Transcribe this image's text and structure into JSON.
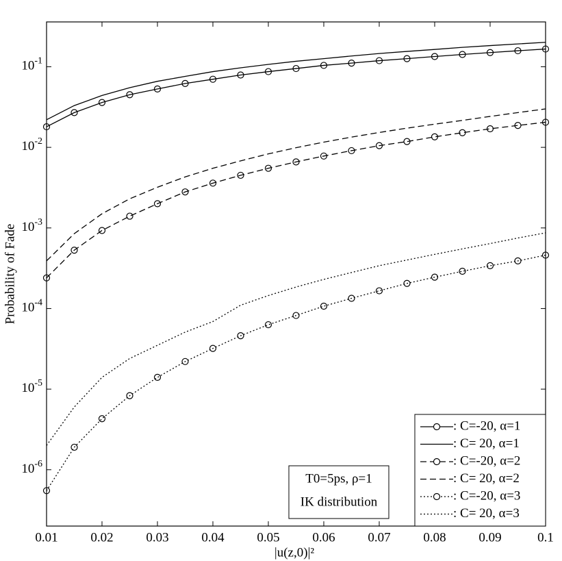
{
  "chart_data": {
    "type": "line",
    "xlabel": "|u(z,0)|²",
    "ylabel": "Probability of Fade",
    "log_y": true,
    "x": [
      0.01,
      0.015,
      0.02,
      0.025,
      0.03,
      0.035,
      0.04,
      0.045,
      0.05,
      0.055,
      0.06,
      0.065,
      0.07,
      0.075,
      0.08,
      0.085,
      0.09,
      0.095,
      0.1
    ],
    "xlim": [
      0.01,
      0.1
    ],
    "ylim": [
      2e-07,
      0.36
    ],
    "xticks": [
      0.01,
      0.02,
      0.03,
      0.04,
      0.05,
      0.06,
      0.07,
      0.08,
      0.09,
      0.1
    ],
    "yticks": [
      {
        "value": 1e-06,
        "label": "10^-6"
      },
      {
        "value": 1e-05,
        "label": "10^-5"
      },
      {
        "value": 0.0001,
        "label": "10^-4"
      },
      {
        "value": 0.001,
        "label": "10^-3"
      },
      {
        "value": 0.01,
        "label": "10^-2"
      },
      {
        "value": 0.1,
        "label": "10^-1"
      }
    ],
    "legend": "lower right",
    "annotations": [
      "T0=5ps, ρ=1",
      "IK distribution"
    ],
    "series": [
      {
        "name": ": C=-20, α=1",
        "color": "#000000",
        "style": "solid",
        "marker": "circle",
        "values": [
          0.018,
          0.027,
          0.036,
          0.045,
          0.053,
          0.062,
          0.07,
          0.079,
          0.087,
          0.095,
          0.104,
          0.111,
          0.119,
          0.126,
          0.134,
          0.142,
          0.15,
          0.158,
          0.166
        ]
      },
      {
        "name": ": C= 20, α=1",
        "color": "#000000",
        "style": "solid",
        "values": [
          0.022,
          0.033,
          0.044,
          0.055,
          0.066,
          0.076,
          0.087,
          0.097,
          0.107,
          0.117,
          0.126,
          0.136,
          0.146,
          0.155,
          0.164,
          0.174,
          0.183,
          0.192,
          0.201
        ]
      },
      {
        "name": ": C=-20, α=2",
        "color": "#000000",
        "style": "dashed",
        "marker": "circle",
        "values": [
          0.00024,
          0.00053,
          0.00093,
          0.0014,
          0.002,
          0.0028,
          0.0036,
          0.0045,
          0.0055,
          0.0066,
          0.0078,
          0.0091,
          0.0105,
          0.0118,
          0.0135,
          0.0152,
          0.017,
          0.0187,
          0.0205
        ]
      },
      {
        "name": ": C= 20, α=2",
        "color": "#000000",
        "style": "dashed",
        "values": [
          0.00039,
          0.00085,
          0.0015,
          0.0023,
          0.0032,
          0.0043,
          0.0055,
          0.0068,
          0.0083,
          0.0099,
          0.0116,
          0.0134,
          0.0153,
          0.0173,
          0.0194,
          0.0216,
          0.0242,
          0.027,
          0.03
        ]
      },
      {
        "name": ": C=-20, α=3",
        "color": "#000000",
        "style": "dotted",
        "marker": "circle",
        "values": [
          5.5e-07,
          1.9e-06,
          4.3e-06,
          8.3e-06,
          1.4e-05,
          2.2e-05,
          3.2e-05,
          4.6e-05,
          6.3e-05,
          8.2e-05,
          0.000107,
          0.000134,
          0.000166,
          0.000205,
          0.000245,
          0.00029,
          0.00034,
          0.00039,
          0.00046
        ]
      },
      {
        "name": ": C= 20, α=3",
        "color": "#000000",
        "style": "dotted",
        "values": [
          2e-06,
          6e-06,
          1.4e-05,
          2.4e-05,
          3.5e-05,
          5.1e-05,
          6.9e-05,
          0.00011,
          0.000145,
          0.000185,
          0.00023,
          0.00028,
          0.00034,
          0.0004,
          0.00047,
          0.00055,
          0.00064,
          0.00075,
          0.00087
        ]
      }
    ]
  }
}
